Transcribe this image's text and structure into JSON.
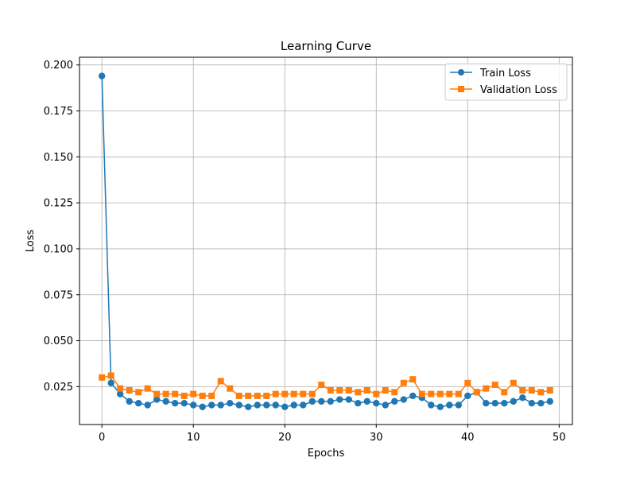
{
  "chart_data": {
    "type": "line",
    "title": "Learning Curve",
    "xlabel": "Epochs",
    "ylabel": "Loss",
    "xlim": [
      -2.45,
      51.45
    ],
    "ylim": [
      0.0044,
      0.2042
    ],
    "xticks": [
      0,
      10,
      20,
      30,
      40,
      50
    ],
    "yticks": [
      0.025,
      0.05,
      0.075,
      0.1,
      0.125,
      0.15,
      0.175,
      0.2
    ],
    "ytick_labels": [
      "0.025",
      "0.050",
      "0.075",
      "0.100",
      "0.125",
      "0.150",
      "0.175",
      "0.200"
    ],
    "xtick_labels": [
      "0",
      "10",
      "20",
      "30",
      "40",
      "50"
    ],
    "grid": true,
    "legend_position": "top-right",
    "x": [
      0,
      1,
      2,
      3,
      4,
      5,
      6,
      7,
      8,
      9,
      10,
      11,
      12,
      13,
      14,
      15,
      16,
      17,
      18,
      19,
      20,
      21,
      22,
      23,
      24,
      25,
      26,
      27,
      28,
      29,
      30,
      31,
      32,
      33,
      34,
      35,
      36,
      37,
      38,
      39,
      40,
      41,
      42,
      43,
      44,
      45,
      46,
      47,
      48,
      49
    ],
    "series": [
      {
        "name": "Train Loss",
        "color": "#1f77b4",
        "marker": "circle",
        "values": [
          0.194,
          0.027,
          0.021,
          0.017,
          0.016,
          0.015,
          0.018,
          0.017,
          0.016,
          0.016,
          0.015,
          0.014,
          0.015,
          0.015,
          0.016,
          0.015,
          0.014,
          0.015,
          0.015,
          0.015,
          0.014,
          0.015,
          0.015,
          0.017,
          0.017,
          0.017,
          0.018,
          0.018,
          0.016,
          0.017,
          0.016,
          0.015,
          0.017,
          0.018,
          0.02,
          0.019,
          0.015,
          0.014,
          0.015,
          0.015,
          0.02,
          0.022,
          0.016,
          0.016,
          0.016,
          0.017,
          0.019,
          0.016,
          0.016,
          0.017
        ]
      },
      {
        "name": "Validation Loss",
        "color": "#ff7f0e",
        "marker": "square",
        "values": [
          0.03,
          0.031,
          0.024,
          0.023,
          0.022,
          0.024,
          0.021,
          0.021,
          0.021,
          0.02,
          0.021,
          0.02,
          0.02,
          0.028,
          0.024,
          0.02,
          0.02,
          0.02,
          0.02,
          0.021,
          0.021,
          0.021,
          0.021,
          0.021,
          0.026,
          0.023,
          0.023,
          0.023,
          0.022,
          0.023,
          0.021,
          0.023,
          0.022,
          0.027,
          0.029,
          0.021,
          0.021,
          0.021,
          0.021,
          0.021,
          0.027,
          0.022,
          0.024,
          0.026,
          0.022,
          0.027,
          0.023,
          0.023,
          0.022,
          0.023
        ]
      }
    ]
  }
}
